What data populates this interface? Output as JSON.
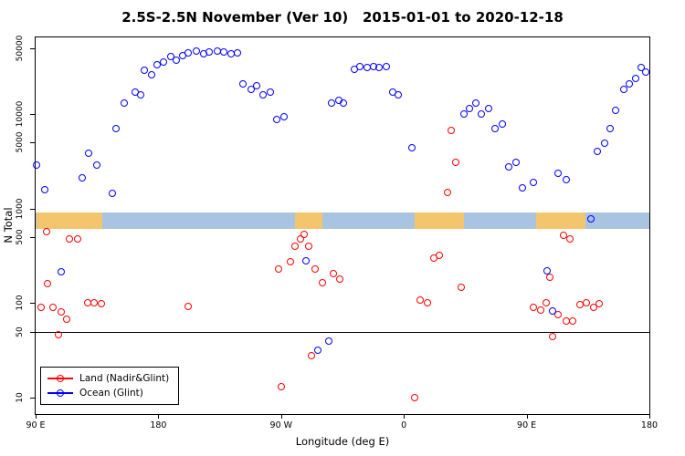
{
  "title": "2.5S-2.5N November (Ver 10)   2015-01-01 to 2020-12-18",
  "axes": {
    "x": {
      "label": "Longitude (deg E)",
      "range": [
        90,
        540
      ],
      "note": "axis runs from 90E eastward around the globe to 180 (450 degrees total)",
      "ticks": [
        {
          "pos": 90,
          "label": "90 E"
        },
        {
          "pos": 180,
          "label": "180"
        },
        {
          "pos": 270,
          "label": "90 W"
        },
        {
          "pos": 360,
          "label": "0"
        },
        {
          "pos": 450,
          "label": "90 E"
        },
        {
          "pos": 540,
          "label": "180"
        }
      ]
    },
    "y": {
      "label": "N Total",
      "scale": "log",
      "range": [
        6.7,
        65000
      ],
      "ticks": [
        {
          "pos": 10,
          "label": "10"
        },
        {
          "pos": 50,
          "label": "50"
        },
        {
          "pos": 100,
          "label": "100"
        },
        {
          "pos": 500,
          "label": "500"
        },
        {
          "pos": 1000,
          "label": "1000"
        },
        {
          "pos": 5000,
          "label": "5000"
        },
        {
          "pos": 10000,
          "label": "10000"
        },
        {
          "pos": 50000,
          "label": "50000"
        }
      ]
    }
  },
  "reference_line_y": 50,
  "band": {
    "description": "equatorial land/ocean map strip",
    "y_range": [
      610,
      910
    ],
    "ocean_color": "#a9c4e1",
    "land_color": "#f3c56c",
    "land_segments": [
      [
        91,
        139
      ],
      [
        280,
        300
      ],
      [
        368,
        404
      ],
      [
        457,
        493
      ]
    ]
  },
  "legend": {
    "items": [
      {
        "label": "Land (Nadir&Glint)",
        "color": "#ff0000"
      },
      {
        "label": "Ocean (Glint)",
        "color": "#0000ff"
      }
    ]
  },
  "chart_data": {
    "type": "scatter",
    "title": "2.5S-2.5N November (Ver 10)   2015-01-01 to 2020-12-18",
    "xlabel": "Longitude (deg E)",
    "ylabel": "N Total",
    "x_range": [
      90,
      540
    ],
    "y_range_log": [
      6.7,
      65000
    ],
    "grid": false,
    "legend_position": "bottom-left",
    "series": [
      {
        "name": "Land (Nadir&Glint)",
        "color": "#ff0000",
        "marker": "open-circle",
        "points": [
          [
            94,
            91
          ],
          [
            98,
            570
          ],
          [
            99,
            160
          ],
          [
            103,
            91
          ],
          [
            107,
            46
          ],
          [
            109,
            80
          ],
          [
            113,
            67
          ],
          [
            115,
            480
          ],
          [
            121,
            480
          ],
          [
            128,
            100
          ],
          [
            133,
            100
          ],
          [
            138,
            98
          ],
          [
            202,
            93
          ],
          [
            268,
            230
          ],
          [
            270,
            13
          ],
          [
            277,
            275
          ],
          [
            280,
            400
          ],
          [
            284,
            480
          ],
          [
            287,
            540
          ],
          [
            290,
            400
          ],
          [
            292,
            28
          ],
          [
            295,
            230
          ],
          [
            300,
            165
          ],
          [
            308,
            205
          ],
          [
            313,
            180
          ],
          [
            368,
            10
          ],
          [
            372,
            107
          ],
          [
            377,
            100
          ],
          [
            382,
            300
          ],
          [
            386,
            320
          ],
          [
            392,
            1480
          ],
          [
            395,
            6800
          ],
          [
            398,
            3100
          ],
          [
            402,
            148
          ],
          [
            455,
            91
          ],
          [
            460,
            85
          ],
          [
            464,
            102
          ],
          [
            467,
            190
          ],
          [
            469,
            44
          ],
          [
            473,
            76
          ],
          [
            477,
            520
          ],
          [
            479,
            65
          ],
          [
            482,
            480
          ],
          [
            484,
            65
          ],
          [
            489,
            96
          ],
          [
            494,
            100
          ],
          [
            499,
            91
          ],
          [
            503,
            98
          ]
        ]
      },
      {
        "name": "Ocean (Glint)",
        "color": "#0000ff",
        "marker": "open-circle",
        "points": [
          [
            91,
            2900
          ],
          [
            97,
            1600
          ],
          [
            109,
            215
          ],
          [
            124,
            2100
          ],
          [
            129,
            3900
          ],
          [
            135,
            2900
          ],
          [
            146,
            1450
          ],
          [
            149,
            7100
          ],
          [
            155,
            13000
          ],
          [
            163,
            17000
          ],
          [
            167,
            16000
          ],
          [
            170,
            29000
          ],
          [
            175,
            26000
          ],
          [
            179,
            33000
          ],
          [
            184,
            36000
          ],
          [
            189,
            41000
          ],
          [
            193,
            37000
          ],
          [
            198,
            42000
          ],
          [
            202,
            45000
          ],
          [
            208,
            47000
          ],
          [
            213,
            44000
          ],
          [
            217,
            46000
          ],
          [
            223,
            47000
          ],
          [
            228,
            46000
          ],
          [
            233,
            44000
          ],
          [
            238,
            45000
          ],
          [
            242,
            21000
          ],
          [
            248,
            18500
          ],
          [
            252,
            20000
          ],
          [
            257,
            16000
          ],
          [
            262,
            17000
          ],
          [
            267,
            8700
          ],
          [
            272,
            9500
          ],
          [
            288,
            280
          ],
          [
            297,
            32
          ],
          [
            305,
            40
          ],
          [
            307,
            13000
          ],
          [
            312,
            14000
          ],
          [
            316,
            13000
          ],
          [
            324,
            30000
          ],
          [
            328,
            32000
          ],
          [
            333,
            31000
          ],
          [
            338,
            32000
          ],
          [
            342,
            31000
          ],
          [
            347,
            32000
          ],
          [
            352,
            17000
          ],
          [
            356,
            16000
          ],
          [
            366,
            4400
          ],
          [
            404,
            10000
          ],
          [
            408,
            11600
          ],
          [
            413,
            13000
          ],
          [
            417,
            10000
          ],
          [
            422,
            11600
          ],
          [
            427,
            7100
          ],
          [
            432,
            7800
          ],
          [
            437,
            2750
          ],
          [
            442,
            3100
          ],
          [
            447,
            1650
          ],
          [
            455,
            1900
          ],
          [
            465,
            220
          ],
          [
            469,
            83
          ],
          [
            473,
            2350
          ],
          [
            479,
            2050
          ],
          [
            497,
            780
          ],
          [
            502,
            4000
          ],
          [
            507,
            4900
          ],
          [
            511,
            7100
          ],
          [
            515,
            11000
          ],
          [
            521,
            18500
          ],
          [
            525,
            21000
          ],
          [
            530,
            24000
          ],
          [
            534,
            31000
          ],
          [
            537,
            28000
          ]
        ]
      }
    ]
  }
}
